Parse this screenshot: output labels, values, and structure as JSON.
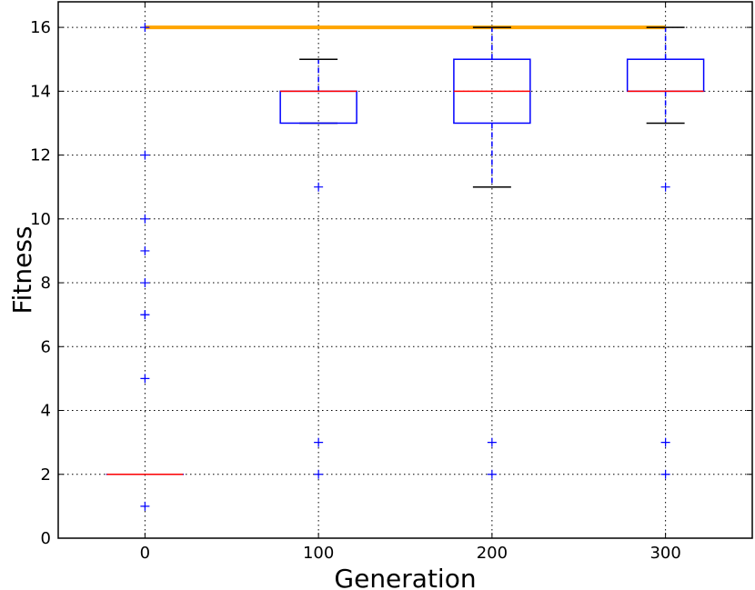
{
  "chart_data": {
    "type": "box",
    "xlabel": "Generation",
    "ylabel": "Fitness",
    "xlim": [
      -50,
      350
    ],
    "ylim": [
      0,
      16.8
    ],
    "grid": true,
    "x_ticks": [
      0,
      100,
      200,
      300
    ],
    "x_tick_labels": [
      "0",
      "100",
      "200",
      "300"
    ],
    "y_ticks": [
      0,
      2,
      4,
      6,
      8,
      10,
      12,
      14,
      16
    ],
    "y_tick_labels": [
      "0",
      "2",
      "4",
      "6",
      "8",
      "10",
      "12",
      "14",
      "16"
    ],
    "box_half_width": 22,
    "best_line": {
      "y": 16,
      "x_from": 0,
      "x_to": 300,
      "color": "#ffa500"
    },
    "boxes": [
      {
        "x": 0,
        "q1": 2,
        "median": 2,
        "q3": 2,
        "whisker_low": 2,
        "whisker_high": 2,
        "outliers": [
          1,
          5,
          7,
          7,
          8,
          9,
          10,
          12,
          16
        ]
      },
      {
        "x": 100,
        "q1": 13,
        "median": 14,
        "q3": 14,
        "whisker_low": 13,
        "whisker_high": 15,
        "outliers": [
          11,
          3,
          2
        ]
      },
      {
        "x": 200,
        "q1": 13,
        "median": 14,
        "q3": 15,
        "whisker_low": 11,
        "whisker_high": 16,
        "outliers": [
          3,
          2
        ]
      },
      {
        "x": 300,
        "q1": 14,
        "median": 14,
        "q3": 15,
        "whisker_low": 13,
        "whisker_high": 16,
        "outliers": [
          11,
          3,
          2
        ]
      }
    ],
    "colors": {
      "box": "#0000ff",
      "median": "#ff0000",
      "whisker": "#0000ff",
      "cap": "#000000",
      "outlier": "#0000ff",
      "grid": "#000000"
    }
  }
}
